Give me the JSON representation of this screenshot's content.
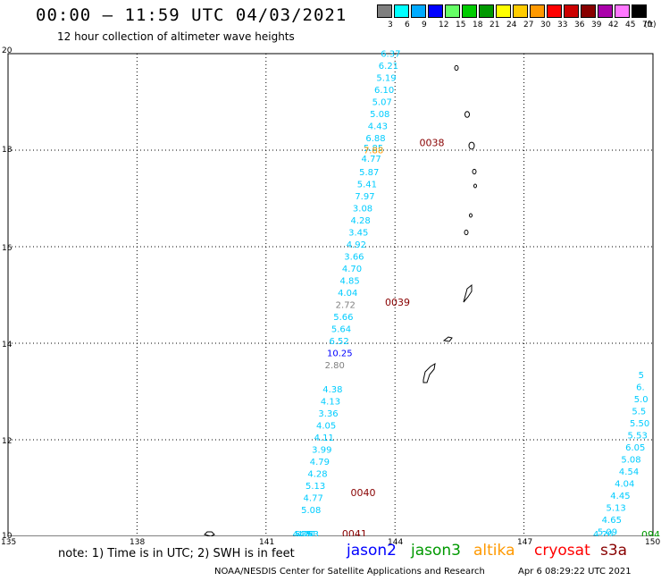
{
  "title": "00:00 – 11:59 UTC 04/03/2021",
  "subtitle": "12 hour collection of altimeter wave heights",
  "colorbar": {
    "cells": [
      {
        "label": "3",
        "color": "#7f7f7f"
      },
      {
        "label": "6",
        "color": "#00ffff"
      },
      {
        "label": "9",
        "color": "#00aaff"
      },
      {
        "label": "12",
        "color": "#0000ff"
      },
      {
        "label": "15",
        "color": "#66ff66"
      },
      {
        "label": "18",
        "color": "#00cc00"
      },
      {
        "label": "21",
        "color": "#009900"
      },
      {
        "label": "24",
        "color": "#ffff00"
      },
      {
        "label": "27",
        "color": "#ffcc00"
      },
      {
        "label": "30",
        "color": "#ff9900"
      },
      {
        "label": "33",
        "color": "#ff0000"
      },
      {
        "label": "36",
        "color": "#cc0000"
      },
      {
        "label": "39",
        "color": "#880000"
      },
      {
        "label": "42",
        "color": "#aa00aa"
      },
      {
        "label": "45",
        "color": "#ff77ff"
      },
      {
        "label": "70",
        "color": "#000000"
      }
    ],
    "unit": "(ft)"
  },
  "axes": {
    "lon_ticks": [
      "135",
      "138",
      "141",
      "144",
      "147",
      "150"
    ],
    "lat_ticks": [
      "20",
      "18",
      "16",
      "14",
      "12",
      "10"
    ]
  },
  "tracks": [
    {
      "color": "#00ccff",
      "points": [
        {
          "lon": 144.0,
          "lat": 19.95,
          "v": "6.37"
        },
        {
          "lon": 143.95,
          "lat": 19.7,
          "v": "6.21"
        },
        {
          "lon": 143.9,
          "lat": 19.45,
          "v": "5.19"
        },
        {
          "lon": 143.85,
          "lat": 19.2,
          "v": "6.10"
        },
        {
          "lon": 143.8,
          "lat": 18.95,
          "v": "5.07"
        },
        {
          "lon": 143.75,
          "lat": 18.7,
          "v": "5.08"
        },
        {
          "lon": 143.7,
          "lat": 18.45,
          "v": "4.43"
        },
        {
          "lon": 143.65,
          "lat": 18.2,
          "v": "6.88"
        },
        {
          "lon": 143.6,
          "lat": 18.0,
          "v": "5.85"
        },
        {
          "lon": 143.55,
          "lat": 17.78,
          "v": "4.77"
        },
        {
          "lon": 143.5,
          "lat": 17.5,
          "v": "5.87"
        },
        {
          "lon": 143.45,
          "lat": 17.25,
          "v": "5.41"
        },
        {
          "lon": 143.4,
          "lat": 17.0,
          "v": "7.97"
        },
        {
          "lon": 143.35,
          "lat": 16.75,
          "v": "3.08"
        },
        {
          "lon": 143.3,
          "lat": 16.5,
          "v": "4.28"
        },
        {
          "lon": 143.25,
          "lat": 16.25,
          "v": "3.45"
        },
        {
          "lon": 143.2,
          "lat": 16.0,
          "v": "4.92"
        },
        {
          "lon": 143.15,
          "lat": 15.75,
          "v": "3.66"
        },
        {
          "lon": 143.1,
          "lat": 15.5,
          "v": "4.70"
        },
        {
          "lon": 143.05,
          "lat": 15.25,
          "v": "4.85"
        },
        {
          "lon": 143.0,
          "lat": 15.0,
          "v": "4.04"
        },
        {
          "lon": 142.9,
          "lat": 14.5,
          "v": "5.66"
        },
        {
          "lon": 142.85,
          "lat": 14.25,
          "v": "5.64"
        },
        {
          "lon": 142.8,
          "lat": 14.0,
          "v": "6.52"
        },
        {
          "lon": 142.65,
          "lat": 13.0,
          "v": "4.38"
        },
        {
          "lon": 142.6,
          "lat": 12.75,
          "v": "4.13"
        },
        {
          "lon": 142.55,
          "lat": 12.5,
          "v": "3.36"
        },
        {
          "lon": 142.5,
          "lat": 12.25,
          "v": "4.05"
        },
        {
          "lon": 142.45,
          "lat": 12.0,
          "v": "4.11"
        },
        {
          "lon": 142.4,
          "lat": 11.75,
          "v": "3.99"
        },
        {
          "lon": 142.35,
          "lat": 11.5,
          "v": "4.79"
        },
        {
          "lon": 142.3,
          "lat": 11.25,
          "v": "4.28"
        },
        {
          "lon": 142.25,
          "lat": 11.0,
          "v": "5.13"
        },
        {
          "lon": 142.2,
          "lat": 10.75,
          "v": "4.77"
        },
        {
          "lon": 142.15,
          "lat": 10.5,
          "v": "5.08"
        },
        {
          "lon": 142.1,
          "lat": 10.0,
          "v": "4.63"
        },
        {
          "lon": 142.05,
          "lat": 9.75,
          "v": "4.81"
        },
        {
          "lon": 142.0,
          "lat": 9.5,
          "v": "5.21"
        },
        {
          "lon": 141.95,
          "lat": 9.25,
          "v": "4.35"
        }
      ]
    }
  ],
  "special_points": [
    {
      "lon": 143.6,
      "lat": 17.95,
      "v": "7.88",
      "color": "#ff9900"
    },
    {
      "lon": 142.95,
      "lat": 14.75,
      "v": "2.72",
      "color": "#7f7f7f"
    },
    {
      "lon": 142.75,
      "lat": 13.75,
      "v": "10.25",
      "color": "#0000ff"
    },
    {
      "lon": 142.7,
      "lat": 13.5,
      "v": "2.80",
      "color": "#7f7f7f"
    }
  ],
  "pass_labels": [
    {
      "lon": 144.9,
      "lat": 18.1,
      "text": "0038",
      "color": "#880000"
    },
    {
      "lon": 144.1,
      "lat": 14.8,
      "text": "0039",
      "color": "#880000"
    },
    {
      "lon": 143.3,
      "lat": 10.85,
      "text": "0040",
      "color": "#880000"
    },
    {
      "lon": 143.1,
      "lat": 9.9,
      "text": "0041",
      "color": "#880000"
    }
  ],
  "right_track": {
    "color": "#00ccff",
    "points": [
      {
        "lon": 149.95,
        "lat": 13.3,
        "v": "5"
      },
      {
        "lon": 149.9,
        "lat": 13.05,
        "v": "6."
      },
      {
        "lon": 149.85,
        "lat": 12.8,
        "v": "5.0"
      },
      {
        "lon": 149.8,
        "lat": 12.55,
        "v": "5.5"
      },
      {
        "lon": 149.75,
        "lat": 12.3,
        "v": "5.50"
      },
      {
        "lon": 149.7,
        "lat": 12.05,
        "v": "5.53"
      },
      {
        "lon": 149.65,
        "lat": 11.8,
        "v": "6.05"
      },
      {
        "lon": 149.55,
        "lat": 11.55,
        "v": "5.08"
      },
      {
        "lon": 149.5,
        "lat": 11.3,
        "v": "4.54"
      },
      {
        "lon": 149.4,
        "lat": 11.05,
        "v": "4.04"
      },
      {
        "lon": 149.3,
        "lat": 10.8,
        "v": "4.45"
      },
      {
        "lon": 149.2,
        "lat": 10.55,
        "v": "5.13"
      },
      {
        "lon": 149.1,
        "lat": 10.3,
        "v": "4.65"
      },
      {
        "lon": 149.0,
        "lat": 10.05,
        "v": "5.09"
      },
      {
        "lon": 148.9,
        "lat": 9.8,
        "v": "4.20"
      }
    ],
    "label": {
      "text": "094",
      "color": "#009900"
    }
  },
  "note_text": "note:  1)  Time is in UTC;  2)  SWH is in feet",
  "satellites": [
    {
      "name": "jason2",
      "color": "#0000ff"
    },
    {
      "name": "jason3",
      "color": "#009900"
    },
    {
      "name": "altika",
      "color": "#ff9900"
    },
    {
      "name": "cryosat",
      "color": "#ff0000"
    },
    {
      "name": "s3a",
      "color": "#880000"
    }
  ],
  "credit": "NOAA/NESDIS Center for Satellite Applications and Research",
  "timestamp": "Apr  6 08:29:22 UTC 2021"
}
